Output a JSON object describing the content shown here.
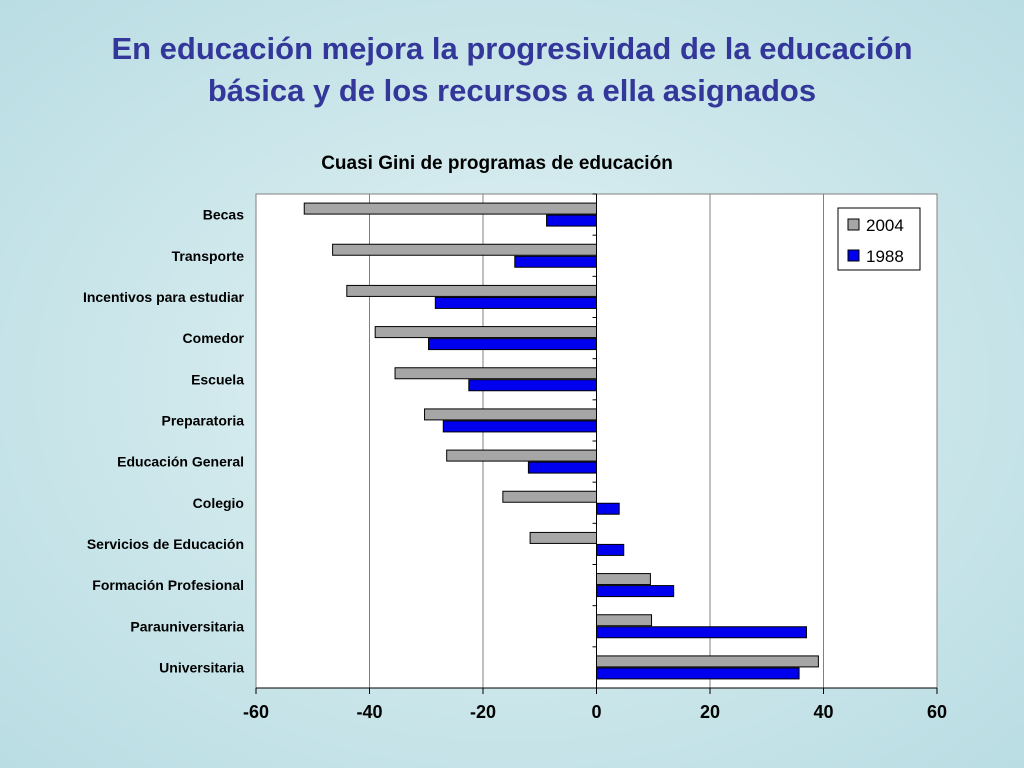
{
  "slide": {
    "title_line1": "En educación mejora la progresividad de la educación",
    "title_line2": "básica y de los recursos a ella asignados"
  },
  "colors": {
    "series_2004": "#a6a6a6",
    "series_1988": "#0000ee",
    "title": "#33379a"
  },
  "chart_data": {
    "type": "bar",
    "orientation": "horizontal",
    "title": "Cuasi Gini de programas de educación",
    "xlabel": "",
    "ylabel": "",
    "xlim": [
      -60,
      60
    ],
    "xticks": [
      -60,
      -40,
      -20,
      0,
      20,
      40,
      60
    ],
    "grid": true,
    "legend_position": "top-right",
    "categories": [
      "Becas",
      "Transporte",
      "Incentivos para estudiar",
      "Comedor",
      "Escuela",
      "Preparatoria",
      "Educación General",
      "Colegio",
      "Servicios de Educación",
      "Formación Profesional",
      "Parauniversitaria",
      "Universitaria"
    ],
    "series": [
      {
        "name": "2004",
        "values": [
          -51.5,
          -46.5,
          -44,
          -39,
          -35.5,
          -30.3,
          -26.4,
          -16.5,
          -11.7,
          9.5,
          9.7,
          39.1
        ]
      },
      {
        "name": "1988",
        "values": [
          -8.8,
          -14.4,
          -28.4,
          -29.6,
          -22.5,
          -27,
          -12,
          4,
          4.8,
          13.6,
          37,
          35.7
        ]
      }
    ]
  }
}
